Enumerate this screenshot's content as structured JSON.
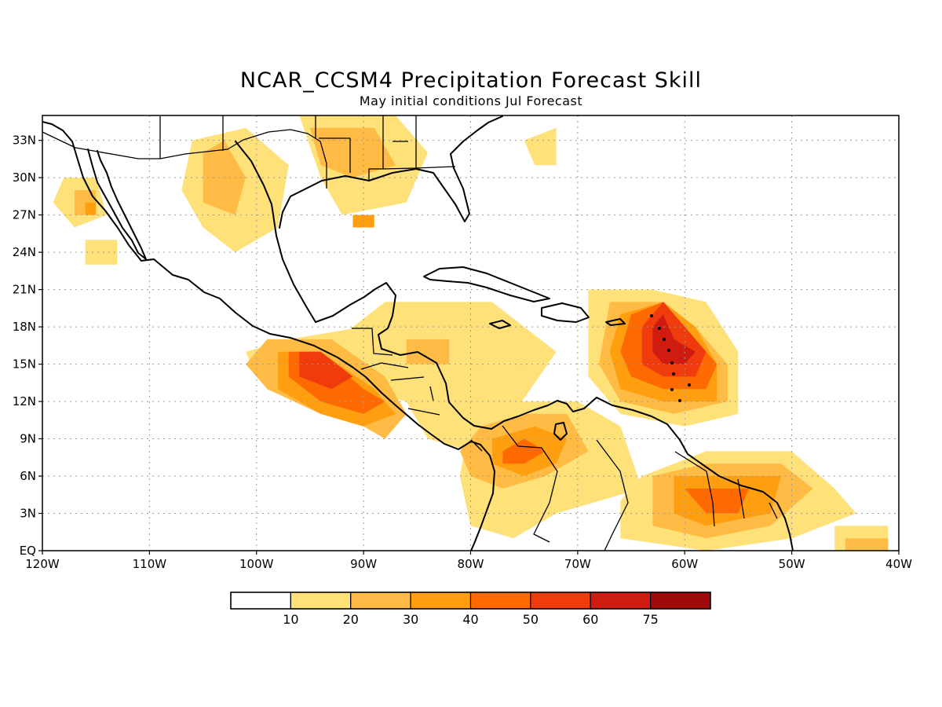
{
  "title": "NCAR_CCSM4 Precipitation Forecast Skill",
  "subtitle": "May initial conditions  Jul Forecast",
  "map": {
    "lon_range": [
      -120,
      -40
    ],
    "lat_range": [
      0,
      35
    ],
    "x_ticks": [
      {
        "lon": -120,
        "label": "120W"
      },
      {
        "lon": -110,
        "label": "110W"
      },
      {
        "lon": -100,
        "label": "100W"
      },
      {
        "lon": -90,
        "label": "90W"
      },
      {
        "lon": -80,
        "label": "80W"
      },
      {
        "lon": -70,
        "label": "70W"
      },
      {
        "lon": -60,
        "label": "60W"
      },
      {
        "lon": -50,
        "label": "50W"
      },
      {
        "lon": -40,
        "label": "40W"
      }
    ],
    "y_ticks": [
      {
        "lat": 0,
        "label": "EQ"
      },
      {
        "lat": 3,
        "label": "3N"
      },
      {
        "lat": 6,
        "label": "6N"
      },
      {
        "lat": 9,
        "label": "9N"
      },
      {
        "lat": 12,
        "label": "12N"
      },
      {
        "lat": 15,
        "label": "15N"
      },
      {
        "lat": 18,
        "label": "18N"
      },
      {
        "lat": 21,
        "label": "21N"
      },
      {
        "lat": 24,
        "label": "24N"
      },
      {
        "lat": 27,
        "label": "27N"
      },
      {
        "lat": 30,
        "label": "30N"
      },
      {
        "lat": 33,
        "label": "33N"
      }
    ],
    "grid": true
  },
  "legend": {
    "colors": [
      "#ffffff",
      "#ffe17a",
      "#ffbb44",
      "#ff9f10",
      "#ff6a00",
      "#f03c0c",
      "#d01c10",
      "#a00a0a"
    ],
    "labels": [
      "10",
      "20",
      "30",
      "40",
      "50",
      "60",
      "75"
    ]
  },
  "skill_regions": [
    {
      "level": 1,
      "polys": [
        [
          [
            -94,
            16
          ],
          [
            -88,
            20
          ],
          [
            -78,
            20
          ],
          [
            -72,
            16
          ],
          [
            -76,
            11
          ],
          [
            -80,
            8
          ],
          [
            -84,
            9
          ],
          [
            -86,
            12
          ],
          [
            -90,
            13
          ],
          [
            -95,
            13
          ]
        ],
        [
          [
            -80,
            11
          ],
          [
            -76,
            12
          ],
          [
            -70,
            12
          ],
          [
            -66,
            10
          ],
          [
            -64,
            5
          ],
          [
            -72,
            3
          ],
          [
            -76,
            1
          ],
          [
            -80,
            2
          ],
          [
            -81,
            6
          ]
        ],
        [
          [
            -64,
            6
          ],
          [
            -58,
            8
          ],
          [
            -50,
            8
          ],
          [
            -46,
            5
          ],
          [
            -44,
            3
          ],
          [
            -50,
            1
          ],
          [
            -58,
            0
          ],
          [
            -66,
            1
          ],
          [
            -66,
            4
          ]
        ],
        [
          [
            -69,
            21
          ],
          [
            -63,
            21
          ],
          [
            -58,
            20
          ],
          [
            -55,
            16
          ],
          [
            -55,
            11
          ],
          [
            -60,
            10
          ],
          [
            -66,
            11
          ],
          [
            -69,
            14
          ]
        ],
        [
          [
            -106,
            33
          ],
          [
            -101,
            34
          ],
          [
            -97,
            31
          ],
          [
            -98,
            26
          ],
          [
            -102,
            24
          ],
          [
            -105,
            26
          ],
          [
            -107,
            29
          ]
        ],
        [
          [
            -96,
            35
          ],
          [
            -87,
            35
          ],
          [
            -84,
            32
          ],
          [
            -86,
            28
          ],
          [
            -92,
            27
          ],
          [
            -94,
            30
          ]
        ],
        [
          [
            -118,
            30
          ],
          [
            -115,
            30
          ],
          [
            -114,
            27
          ],
          [
            -117,
            26
          ],
          [
            -119,
            28
          ]
        ],
        [
          [
            -116,
            25
          ],
          [
            -113,
            25
          ],
          [
            -113,
            23
          ],
          [
            -116,
            23
          ]
        ],
        [
          [
            -46,
            2
          ],
          [
            -41,
            2
          ],
          [
            -41,
            0
          ],
          [
            -46,
            0
          ]
        ],
        [
          [
            -75,
            33
          ],
          [
            -72,
            34
          ],
          [
            -72,
            31
          ],
          [
            -74,
            31
          ]
        ],
        [
          [
            -97,
            17
          ],
          [
            -90,
            18
          ],
          [
            -90,
            15
          ],
          [
            -95,
            14
          ],
          [
            -100,
            14
          ],
          [
            -101,
            16
          ]
        ]
      ]
    },
    {
      "level": 2,
      "polys": [
        [
          [
            -99,
            17
          ],
          [
            -93,
            17
          ],
          [
            -88,
            14
          ],
          [
            -86,
            11
          ],
          [
            -88,
            9
          ],
          [
            -90,
            10
          ],
          [
            -94,
            11
          ],
          [
            -99,
            13
          ],
          [
            -101,
            15
          ]
        ],
        [
          [
            -79,
            10
          ],
          [
            -75,
            11
          ],
          [
            -71,
            11
          ],
          [
            -69,
            8
          ],
          [
            -73,
            6
          ],
          [
            -77,
            5
          ],
          [
            -80,
            6
          ],
          [
            -81,
            8
          ]
        ],
        [
          [
            -63,
            6
          ],
          [
            -58,
            7
          ],
          [
            -51,
            7
          ],
          [
            -48,
            5
          ],
          [
            -52,
            2
          ],
          [
            -58,
            1
          ],
          [
            -63,
            2
          ]
        ],
        [
          [
            -67,
            20
          ],
          [
            -62,
            20
          ],
          [
            -59,
            18
          ],
          [
            -56,
            15
          ],
          [
            -56,
            12
          ],
          [
            -61,
            11
          ],
          [
            -66,
            12
          ],
          [
            -68,
            15
          ]
        ],
        [
          [
            -105,
            32
          ],
          [
            -103,
            33
          ],
          [
            -101,
            30
          ],
          [
            -102,
            27
          ],
          [
            -105,
            28
          ]
        ],
        [
          [
            -95,
            34
          ],
          [
            -89,
            34
          ],
          [
            -87,
            31
          ],
          [
            -91,
            30
          ],
          [
            -94,
            31
          ]
        ],
        [
          [
            -117,
            29
          ],
          [
            -115,
            29
          ],
          [
            -115,
            27
          ],
          [
            -117,
            27
          ]
        ],
        [
          [
            -86,
            17
          ],
          [
            -82,
            17
          ],
          [
            -82,
            15
          ],
          [
            -86,
            15
          ]
        ],
        [
          [
            -45,
            1
          ],
          [
            -41,
            1
          ],
          [
            -41,
            0
          ],
          [
            -45,
            0
          ]
        ]
      ]
    },
    {
      "level": 3,
      "polys": [
        [
          [
            -98,
            16
          ],
          [
            -94,
            16
          ],
          [
            -89,
            13
          ],
          [
            -87,
            11
          ],
          [
            -90,
            10
          ],
          [
            -94,
            11
          ],
          [
            -98,
            13
          ]
        ],
        [
          [
            -78,
            9
          ],
          [
            -74,
            10
          ],
          [
            -71,
            9
          ],
          [
            -72,
            7
          ],
          [
            -75,
            6
          ],
          [
            -78,
            7
          ]
        ],
        [
          [
            -61,
            6
          ],
          [
            -56,
            6
          ],
          [
            -51,
            6
          ],
          [
            -52,
            3
          ],
          [
            -58,
            2
          ],
          [
            -61,
            3
          ]
        ],
        [
          [
            -66,
            19
          ],
          [
            -62,
            20
          ],
          [
            -59,
            18
          ],
          [
            -57,
            15
          ],
          [
            -57,
            12
          ],
          [
            -62,
            12
          ],
          [
            -66,
            13
          ],
          [
            -67,
            16
          ]
        ],
        [
          [
            -116,
            28
          ],
          [
            -115,
            28
          ],
          [
            -115,
            27
          ],
          [
            -116,
            27
          ]
        ],
        [
          [
            -91,
            27
          ],
          [
            -89,
            27
          ],
          [
            -89,
            26
          ],
          [
            -91,
            26
          ]
        ]
      ]
    },
    {
      "level": 4,
      "polys": [
        [
          [
            -97,
            16
          ],
          [
            -94,
            16
          ],
          [
            -90,
            13
          ],
          [
            -88,
            12
          ],
          [
            -90,
            11
          ],
          [
            -94,
            12
          ],
          [
            -97,
            14
          ]
        ],
        [
          [
            -77,
            8
          ],
          [
            -75,
            9
          ],
          [
            -73,
            8
          ],
          [
            -75,
            7
          ],
          [
            -77,
            7
          ]
        ],
        [
          [
            -60,
            5
          ],
          [
            -57,
            5
          ],
          [
            -54,
            5
          ],
          [
            -55,
            3
          ],
          [
            -58,
            3
          ]
        ],
        [
          [
            -65,
            19
          ],
          [
            -62,
            20
          ],
          [
            -60,
            18
          ],
          [
            -57,
            15
          ],
          [
            -58,
            13
          ],
          [
            -62,
            13
          ],
          [
            -65,
            14
          ],
          [
            -66,
            16
          ]
        ]
      ]
    },
    {
      "level": 5,
      "polys": [
        [
          [
            -96,
            16
          ],
          [
            -94,
            16
          ],
          [
            -91,
            14
          ],
          [
            -93,
            13
          ],
          [
            -96,
            14
          ]
        ],
        [
          [
            -64,
            18
          ],
          [
            -62,
            20
          ],
          [
            -60,
            18
          ],
          [
            -58,
            16
          ],
          [
            -59,
            14
          ],
          [
            -62,
            14
          ],
          [
            -64,
            15
          ]
        ]
      ]
    },
    {
      "level": 6,
      "polys": [
        [
          [
            -63,
            18
          ],
          [
            -62,
            19
          ],
          [
            -61,
            17
          ],
          [
            -59,
            16
          ],
          [
            -60,
            15
          ],
          [
            -62,
            15
          ],
          [
            -63,
            16
          ]
        ]
      ]
    }
  ]
}
